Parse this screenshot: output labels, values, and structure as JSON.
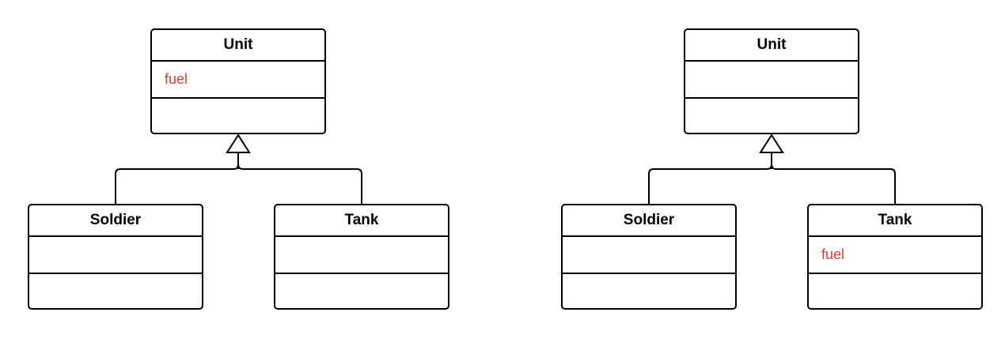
{
  "accent_color": "#e03a2f",
  "diagrams": [
    {
      "parent": {
        "name": "Unit",
        "attribute": "fuel"
      },
      "children": [
        {
          "name": "Soldier",
          "attribute": ""
        },
        {
          "name": "Tank",
          "attribute": ""
        }
      ]
    },
    {
      "parent": {
        "name": "Unit",
        "attribute": ""
      },
      "children": [
        {
          "name": "Soldier",
          "attribute": ""
        },
        {
          "name": "Tank",
          "attribute": "fuel"
        }
      ]
    }
  ]
}
